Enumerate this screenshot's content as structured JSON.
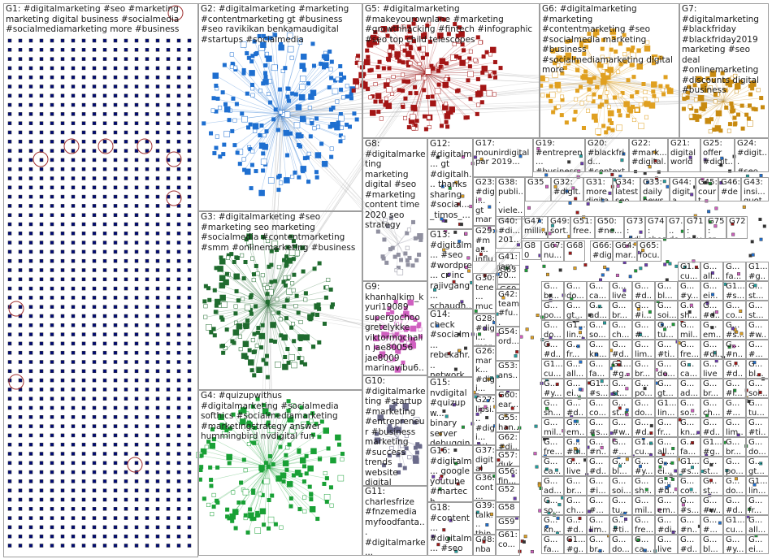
{
  "groups": [
    {
      "id": "G1",
      "label": "G1: #digitalmarketing #seo #marketing marketing digital business #socialmedia #socialmediamarketing more #business",
      "color": "#000a78"
    },
    {
      "id": "G2",
      "label": "G2: #digitalmarketing #marketing #contentmarketing gt #business #seo ravikikan benkamaudigital #startups #socialmedia",
      "color": "#1e6fd0"
    },
    {
      "id": "G3",
      "label": "G3: #digitalmarketing #seo #marketing seo marketing #socialmedia #contentmarketing #smm #onlinemarketing #business",
      "color": "#1f6b2e"
    },
    {
      "id": "G4",
      "label": "G4: #quizupwithus #digitalmarketing #socialmedia softhics #socialmediamarketing #marketingstrategy answer hummingbird nvdigital fun",
      "color": "#18a035"
    },
    {
      "id": "G5",
      "label": "G5: #digitalmarketing #makeyourownlane #marketing #growthhacking #fintech #infographic #seo top child telescopes",
      "color": "#a31515"
    },
    {
      "id": "G6",
      "label": "G6: #digitalmarketing #marketing #contentmarketing #seo #socialmedia marketing #business #socialmediamarketing digital more",
      "color": "#e0a020"
    },
    {
      "id": "G7",
      "label": "G7: #digitalmarketing #blackfriday #blackfriday2019 marketing #seo deal #onlinemarketing #discounts digital #business",
      "color": "#c88a10"
    },
    {
      "id": "G8",
      "label": "G8: #digitalmarketing marketing digital #seo #marketing content time 2020 seo strategy",
      "color": "#777"
    },
    {
      "id": "G9",
      "label": "G9: khanhalkim_k yuri19089 supergochoo gretelykke viktormochalin jae80056 jae8009 marinavibu6... skstevens09",
      "color": "#d060c0"
    },
    {
      "id": "G10",
      "label": "G10: #digitalmarketing #startup #marketing #entrepreneur #business marketing #success trends website digital",
      "color": "#777"
    },
    {
      "id": "G11",
      "label": "G11: charlesfrize #fnzemedia myfoodfanta... #digitalmarke... dynamicfrize...",
      "color": "#777"
    },
    {
      "id": "G12",
      "label": "G12: #digitalm... gt #digitalh... thanks sharing #social... _timos_...",
      "color": "#777"
    },
    {
      "id": "G13",
      "label": "G13: #digitalm... #seo #wordpre... cr inc rajivgang... schaudh...",
      "color": "#777"
    },
    {
      "id": "G14",
      "label": "G14: check #socialm... rebekahr... network social...",
      "color": "#777"
    },
    {
      "id": "G15",
      "label": "G15: nvdigital #quizupw... binary server debuggin...",
      "color": "#777"
    },
    {
      "id": "G16",
      "label": "G16: #digitalm... google youtube #martech",
      "color": "#777"
    },
    {
      "id": "G17",
      "label": "G17: mounirdigital par 2019...",
      "color": "#777"
    },
    {
      "id": "G18",
      "label": "G18: #content... #digitalm... #seo #marketi...",
      "color": "#777"
    },
    {
      "id": "G19",
      "label": "G19: #entrepren... #business...",
      "color": "#777"
    },
    {
      "id": "G20",
      "label": "G20: #blackfrid... #context...",
      "color": "#777"
    },
    {
      "id": "G21",
      "label": "G21: digital world",
      "color": "#777"
    },
    {
      "id": "G22",
      "label": "G22: #mark... #digital...",
      "color": "#777"
    },
    {
      "id": "G23",
      "label": "G23: #digi... gt mark...",
      "color": "#777"
    },
    {
      "id": "G24",
      "label": "G24: #digit... #seo...",
      "color": "#777"
    },
    {
      "id": "G25",
      "label": "G25: offer #digit...",
      "color": "#777"
    },
    {
      "id": "G26",
      "label": "G26: mark... #digi...",
      "color": "#777"
    },
    {
      "id": "G27",
      "label": "G27: lipsi... #digi... #tha...",
      "color": "#777"
    },
    {
      "id": "G28",
      "label": "G28: #digi... mark...",
      "color": "#777"
    },
    {
      "id": "G29",
      "label": "G29: #ma... influ...",
      "color": "#777"
    },
    {
      "id": "G30",
      "label": "G30: tene... muc...",
      "color": "#777"
    },
    {
      "id": "G31",
      "label": "G31: more digita...",
      "color": "#777"
    },
    {
      "id": "G32",
      "label": "G32: #digit... mark...",
      "color": "#777"
    },
    {
      "id": "G33",
      "label": "G33: daily news...",
      "color": "#777"
    },
    {
      "id": "G34",
      "label": "G34: latest seo...",
      "color": "#777"
    },
    {
      "id": "G35",
      "label": "G35",
      "color": "#777"
    },
    {
      "id": "G36",
      "label": "G36: cont... traffi...",
      "color": "#777"
    },
    {
      "id": "G37",
      "label": "G37: digital bizgr...",
      "color": "#777"
    },
    {
      "id": "G38",
      "label": "G38: publi... viele...",
      "color": "#777"
    },
    {
      "id": "G39",
      "label": "G39: talk... thing...",
      "color": "#777"
    },
    {
      "id": "G40",
      "label": "G40: #di... 201...",
      "color": "#777"
    },
    {
      "id": "G41",
      "label": "G41: jam 20...",
      "color": "#777"
    },
    {
      "id": "G42",
      "label": "G42: team #fu...",
      "color": "#777"
    },
    {
      "id": "G43",
      "label": "G43: insi... quot...",
      "color": "#777"
    },
    {
      "id": "G44",
      "label": "G44: digita mar...",
      "color": "#777"
    },
    {
      "id": "G45",
      "label": "G45: court #digi...",
      "color": "#777"
    },
    {
      "id": "G46",
      "label": "G46: #de... cxo...",
      "color": "#777"
    },
    {
      "id": "G47",
      "label": "G47: milli...",
      "color": "#777"
    },
    {
      "id": "G48",
      "label": "G48: nba",
      "color": "#777"
    },
    {
      "id": "G49",
      "label": "G49: sort...",
      "color": "#777"
    },
    {
      "id": "G50",
      "label": "G50: #ne...",
      "color": "#777"
    },
    {
      "id": "G51",
      "label": "G51: free...",
      "color": "#777"
    },
    {
      "id": "G52",
      "label": "G52",
      "color": "#777"
    },
    {
      "id": "G53",
      "label": "G53: ans... #c...",
      "color": "#777"
    },
    {
      "id": "G54",
      "label": "G54: ord...",
      "color": "#777"
    },
    {
      "id": "G55",
      "label": "G55: han...",
      "color": "#777"
    },
    {
      "id": "G56",
      "label": "G56: fin...",
      "color": "#777"
    },
    {
      "id": "G57",
      "label": "G57: duk... adv...",
      "color": "#777"
    },
    {
      "id": "G58",
      "label": "G58",
      "color": "#777"
    },
    {
      "id": "G59",
      "label": "G59",
      "color": "#777"
    },
    {
      "id": "G60",
      "label": "G60: ear...",
      "color": "#777"
    },
    {
      "id": "G61",
      "label": "G61: co...",
      "color": "#777"
    },
    {
      "id": "G62",
      "label": "G62: #di...",
      "color": "#777"
    },
    {
      "id": "G63",
      "label": "G63",
      "color": "#777"
    },
    {
      "id": "G64",
      "label": "G64: mar...",
      "color": "#777"
    },
    {
      "id": "G65",
      "label": "G65: focu...",
      "color": "#777"
    },
    {
      "id": "G66",
      "label": "G66: #dig...",
      "color": "#777"
    },
    {
      "id": "G67",
      "label": "G67: nu...",
      "color": "#777"
    },
    {
      "id": "G68",
      "label": "G68",
      "color": "#777"
    },
    {
      "id": "G69",
      "label": "G69",
      "color": "#777"
    },
    {
      "id": "G70",
      "label": "G70",
      "color": "#777"
    },
    {
      "id": "G71",
      "label": "G71: pay...",
      "color": "#777"
    },
    {
      "id": "G72",
      "label": "G72",
      "color": "#777"
    },
    {
      "id": "G73",
      "label": "G73: #dig...",
      "color": "#777"
    },
    {
      "id": "G74",
      "label": "G74: sho...",
      "color": "#777"
    },
    {
      "id": "G75",
      "label": "G75: sp...",
      "color": "#777"
    },
    {
      "id": "G76",
      "label": "G7... do...",
      "color": "#777"
    },
    {
      "id": "G80",
      "label": "G80",
      "color": "#777"
    }
  ],
  "small_cells": [
    "G1... cu...",
    "G... all...",
    "G... fa...",
    "G1... #g...",
    "G... br...",
    "G... do...",
    "G... ca...",
    "G... live",
    "G... #d...",
    "G... bl...",
    "G... #y...",
    "G... ei...",
    "G1... #s...",
    "G... st...",
    "G... po...",
    "G... gt...",
    "G... ad...",
    "G... br...",
    "G... #i...",
    "G... soi...",
    "G... sh...",
    "G... #d...",
    "G... co...",
    "G... st...",
    "G... do...",
    "G1... lin...",
    "G... so...",
    "G... ch...",
    "G... #...",
    "G... tu...",
    "G... mil...",
    "G... em...",
    "G... #s...",
    "G... #w...",
    "G... #d...",
    "G... fr...",
    "G... kn...",
    "G... #d...",
    "G... lim...",
    "G... #ti...",
    "G... fre...",
    "G... #di...",
    "G... #n...",
    "G... #..."
  ]
}
